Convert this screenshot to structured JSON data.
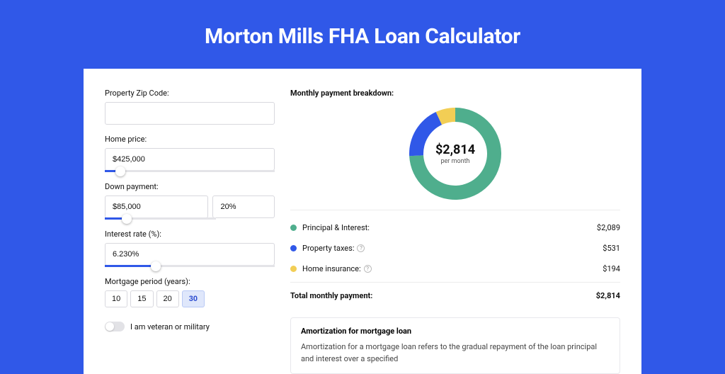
{
  "page": {
    "title": "Morton Mills FHA Loan Calculator",
    "background_color": "#3058e8",
    "card_background": "#ffffff"
  },
  "form": {
    "zip": {
      "label": "Property Zip Code:",
      "value": ""
    },
    "home_price": {
      "label": "Home price:",
      "value": "$425,000",
      "slider_pct": 9
    },
    "down_payment": {
      "label": "Down payment:",
      "amount": "$85,000",
      "percent": "20%",
      "slider_pct": 20
    },
    "interest_rate": {
      "label": "Interest rate (%):",
      "value": "6.230%",
      "slider_pct": 30
    },
    "mortgage_period": {
      "label": "Mortgage period (years):",
      "options": [
        "10",
        "15",
        "20",
        "30"
      ],
      "selected": "30"
    },
    "veteran": {
      "label": "I am veteran or military",
      "checked": false
    }
  },
  "breakdown": {
    "title": "Monthly payment breakdown:",
    "center_amount": "$2,814",
    "center_sub": "per month",
    "items": [
      {
        "label": "Principal & Interest:",
        "value": "$2,089",
        "color": "#4fae8d",
        "has_help": false,
        "pct": 74.2
      },
      {
        "label": "Property taxes:",
        "value": "$531",
        "color": "#3058e8",
        "has_help": true,
        "pct": 18.9
      },
      {
        "label": "Home insurance:",
        "value": "$194",
        "color": "#f2ce55",
        "has_help": true,
        "pct": 6.9
      }
    ],
    "total": {
      "label": "Total monthly payment:",
      "value": "$2,814"
    },
    "donut": {
      "size": 130,
      "thickness": 20
    }
  },
  "amortization": {
    "title": "Amortization for mortgage loan",
    "body": "Amortization for a mortgage loan refers to the gradual repayment of the loan principal and interest over a specified"
  }
}
